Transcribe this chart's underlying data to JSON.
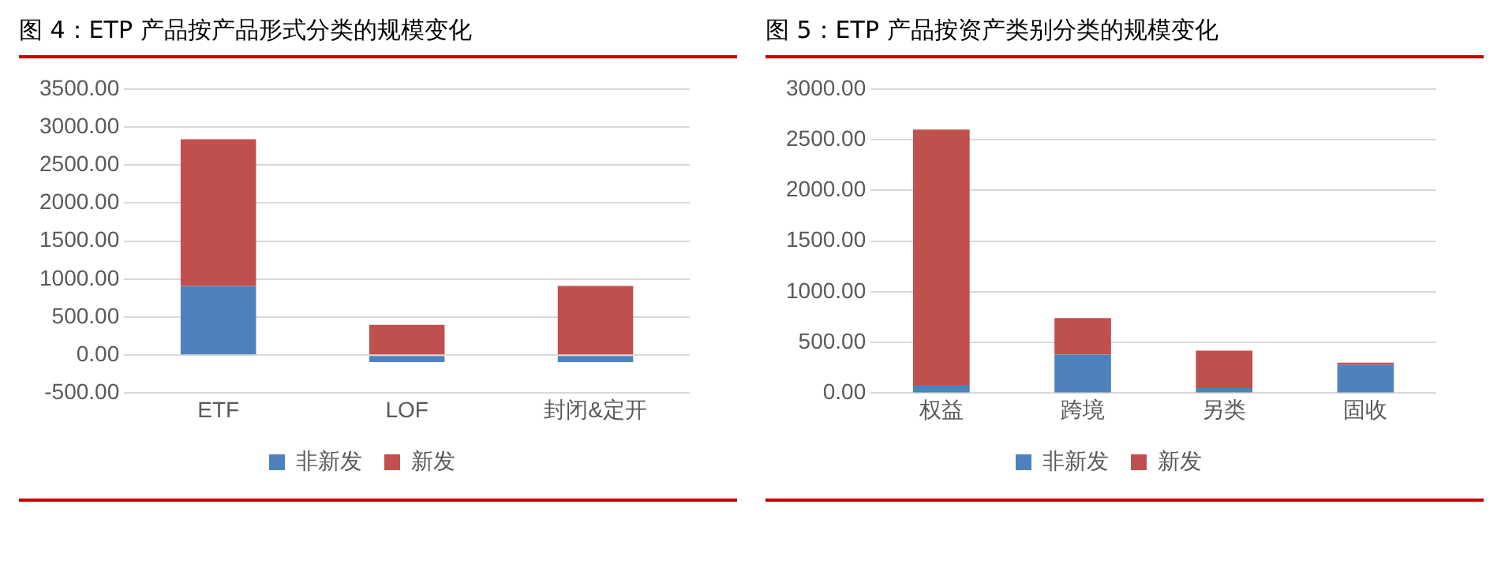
{
  "chart_data": [
    {
      "type": "bar",
      "title": "图 4：ETP 产品按产品形式分类的规模变化",
      "categories": [
        "ETF",
        "LOF",
        "封闭&定开"
      ],
      "stacked": true,
      "series": [
        {
          "name": "非新发",
          "color": "#4f81bd",
          "values": [
            910,
            -90,
            -90
          ]
        },
        {
          "name": "新发",
          "color": "#c0504d",
          "values": [
            1930,
            400,
            910
          ]
        }
      ],
      "ylim": [
        -500,
        3500
      ],
      "yticks": [
        {
          "value": -500,
          "label": "-500.00"
        },
        {
          "value": 0,
          "label": "0.00"
        },
        {
          "value": 500,
          "label": "500.00"
        },
        {
          "value": 1000,
          "label": "1000.00"
        },
        {
          "value": 1500,
          "label": "1500.00"
        },
        {
          "value": 2000,
          "label": "2000.00"
        },
        {
          "value": 2500,
          "label": "2500.00"
        },
        {
          "value": 3000,
          "label": "3000.00"
        },
        {
          "value": 3500,
          "label": "3500.00"
        }
      ],
      "grid": "y",
      "legend": "bottom"
    },
    {
      "type": "bar",
      "title": "图 5：ETP 产品按资产类别分类的规模变化",
      "categories": [
        "权益",
        "跨境",
        "另类",
        "固收"
      ],
      "stacked": true,
      "series": [
        {
          "name": "非新发",
          "color": "#4f81bd",
          "values": [
            80,
            380,
            50,
            280
          ]
        },
        {
          "name": "新发",
          "color": "#c0504d",
          "values": [
            2520,
            360,
            370,
            20
          ]
        }
      ],
      "ylim": [
        0,
        3000
      ],
      "yticks": [
        {
          "value": 0,
          "label": "0.00"
        },
        {
          "value": 500,
          "label": "500.00"
        },
        {
          "value": 1000,
          "label": "1000.00"
        },
        {
          "value": 1500,
          "label": "1500.00"
        },
        {
          "value": 2000,
          "label": "2000.00"
        },
        {
          "value": 2500,
          "label": "2500.00"
        },
        {
          "value": 3000,
          "label": "3000.00"
        }
      ],
      "grid": "y",
      "legend": "bottom"
    }
  ]
}
